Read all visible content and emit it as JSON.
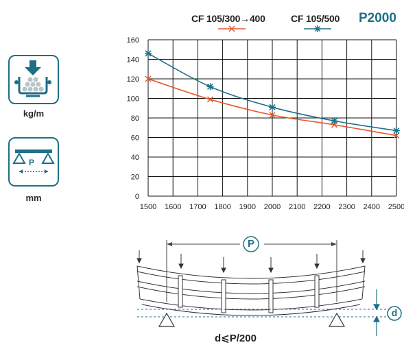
{
  "product": "P2000",
  "icons": {
    "load_unit": "kg/m",
    "span_unit": "mm",
    "span_letter": "P"
  },
  "colors": {
    "accent": "#1d6f86",
    "series_a": "#e8572a",
    "series_b": "#1d6f86"
  },
  "chart_data": {
    "type": "line",
    "xlim": [
      1500,
      2500
    ],
    "ylim": [
      0,
      160
    ],
    "x_ticks": [
      "1500",
      "1600",
      "1700",
      "1800",
      "1900",
      "2000",
      "2100",
      "2200",
      "2300",
      "2400",
      "2500"
    ],
    "y_ticks": [
      "0",
      "20",
      "40",
      "60",
      "80",
      "100",
      "120",
      "140",
      "160"
    ],
    "grid": true,
    "legend_position": "top",
    "series": [
      {
        "name": "CF 105/300→400",
        "color": "#e8572a",
        "marker": "x",
        "points": [
          [
            1500,
            120
          ],
          [
            1750,
            99
          ],
          [
            2000,
            83
          ],
          [
            2250,
            73
          ],
          [
            2500,
            62
          ]
        ]
      },
      {
        "name": "CF 105/500",
        "color": "#1d6f86",
        "marker": "star",
        "points": [
          [
            1500,
            146
          ],
          [
            1750,
            112
          ],
          [
            2000,
            91
          ],
          [
            2250,
            77
          ],
          [
            2500,
            67
          ]
        ]
      }
    ]
  },
  "diagram": {
    "span_label": "P",
    "deflection_label": "d",
    "formula": "d⩽P/200"
  }
}
